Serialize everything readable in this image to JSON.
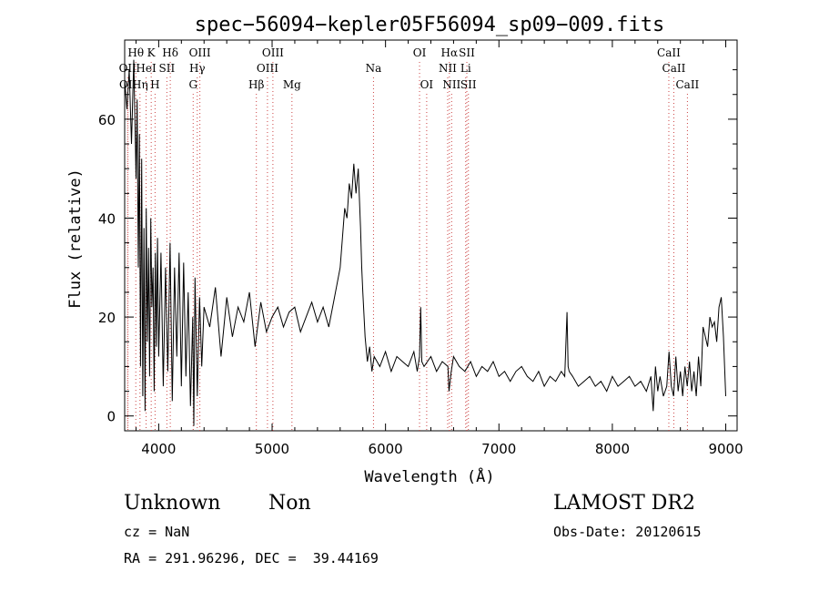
{
  "chart_data": {
    "type": "line",
    "title": "spec−56094−kepler05F56094_sp09−009.fits",
    "xlabel": "Wavelength (Å)",
    "ylabel": "Flux (relative)",
    "xlim": [
      3700,
      9100
    ],
    "ylim": [
      -3,
      76
    ],
    "xticks": [
      4000,
      5000,
      6000,
      7000,
      8000,
      9000
    ],
    "yticks": [
      0,
      20,
      40,
      60
    ],
    "series": [
      {
        "x": [
          3700,
          3720,
          3740,
          3760,
          3780,
          3800,
          3810,
          3820,
          3830,
          3840,
          3850,
          3860,
          3870,
          3880,
          3890,
          3900,
          3910,
          3920,
          3930,
          3940,
          3950,
          3960,
          3970,
          3980,
          3990,
          4000,
          4020,
          4040,
          4060,
          4080,
          4100,
          4120,
          4140,
          4160,
          4180,
          4200,
          4220,
          4240,
          4260,
          4280,
          4300,
          4310,
          4320,
          4340,
          4360,
          4380,
          4400,
          4450,
          4500,
          4550,
          4600,
          4650,
          4700,
          4750,
          4800,
          4850,
          4900,
          4950,
          5000,
          5050,
          5100,
          5150,
          5200,
          5250,
          5300,
          5350,
          5400,
          5450,
          5500,
          5550,
          5600,
          5620,
          5640,
          5660,
          5680,
          5700,
          5720,
          5740,
          5760,
          5780,
          5790,
          5800,
          5820,
          5840,
          5860,
          5880,
          5900,
          5950,
          6000,
          6050,
          6100,
          6150,
          6200,
          6250,
          6280,
          6300,
          6310,
          6320,
          6340,
          6400,
          6450,
          6500,
          6550,
          6560,
          6580,
          6600,
          6650,
          6700,
          6750,
          6800,
          6850,
          6900,
          6950,
          7000,
          7050,
          7100,
          7150,
          7200,
          7250,
          7300,
          7350,
          7400,
          7450,
          7500,
          7550,
          7580,
          7600,
          7610,
          7620,
          7650,
          7700,
          7750,
          7800,
          7850,
          7900,
          7950,
          8000,
          8050,
          8100,
          8150,
          8200,
          8250,
          8300,
          8340,
          8360,
          8380,
          8400,
          8420,
          8450,
          8480,
          8500,
          8520,
          8540,
          8560,
          8580,
          8600,
          8620,
          8640,
          8660,
          8680,
          8700,
          8720,
          8740,
          8760,
          8780,
          8800,
          8820,
          8840,
          8860,
          8880,
          8900,
          8920,
          8940,
          8960,
          8980,
          9000
        ],
        "y": [
          68,
          62,
          70,
          55,
          72,
          48,
          64,
          30,
          57,
          10,
          52,
          4,
          38,
          1,
          42,
          15,
          34,
          8,
          40,
          22,
          30,
          5,
          33,
          14,
          36,
          12,
          33,
          6,
          30,
          9,
          35,
          3,
          30,
          12,
          33,
          6,
          31,
          8,
          25,
          2,
          20,
          -2,
          28,
          4,
          24,
          10,
          22,
          18,
          26,
          12,
          24,
          16,
          22,
          19,
          25,
          14,
          23,
          17,
          20,
          22,
          18,
          21,
          22,
          17,
          20,
          23,
          19,
          22,
          18,
          24,
          30,
          36,
          42,
          40,
          47,
          44,
          51,
          45,
          50,
          38,
          30,
          25,
          16,
          11,
          14,
          9,
          12,
          10,
          13,
          9,
          12,
          11,
          10,
          13,
          9,
          12,
          22,
          11,
          10,
          12,
          9,
          11,
          10,
          5,
          9,
          12,
          10,
          9,
          11,
          8,
          10,
          9,
          11,
          8,
          9,
          7,
          9,
          10,
          8,
          7,
          9,
          6,
          8,
          7,
          9,
          8,
          21,
          10,
          9,
          8,
          6,
          7,
          8,
          6,
          7,
          5,
          8,
          6,
          7,
          8,
          6,
          7,
          5,
          8,
          1,
          10,
          5,
          8,
          4,
          6,
          13,
          6,
          4,
          12,
          5,
          9,
          4,
          10,
          6,
          11,
          5,
          9,
          4,
          12,
          6,
          18,
          16,
          14,
          20,
          18,
          19,
          15,
          22,
          24,
          16,
          4
        ]
      }
    ],
    "lines": [
      {
        "wl": 3726,
        "label": "OII",
        "row": 2
      },
      {
        "wl": 3729,
        "label": "OII",
        "row": 3
      },
      {
        "wl": 3798,
        "label": "Hθ",
        "row": 1
      },
      {
        "wl": 3835,
        "label": "Hη",
        "row": 3
      },
      {
        "wl": 3889,
        "label": "HeI",
        "row": 2
      },
      {
        "wl": 3934,
        "label": "K",
        "row": 1
      },
      {
        "wl": 3968,
        "label": "H",
        "row": 3
      },
      {
        "wl": 4072,
        "label": "SII",
        "row": 2
      },
      {
        "wl": 4102,
        "label": "Hδ",
        "row": 1
      },
      {
        "wl": 4304,
        "label": "G",
        "row": 3
      },
      {
        "wl": 4340,
        "label": "Hγ",
        "row": 2
      },
      {
        "wl": 4363,
        "label": "OIII",
        "row": 1
      },
      {
        "wl": 4861,
        "label": "Hβ",
        "row": 3
      },
      {
        "wl": 4959,
        "label": "OIII",
        "row": 2
      },
      {
        "wl": 5007,
        "label": "OIII",
        "row": 1
      },
      {
        "wl": 5175,
        "label": "Mg",
        "row": 3
      },
      {
        "wl": 5894,
        "label": "Na",
        "row": 2
      },
      {
        "wl": 6300,
        "label": "OI",
        "row": 1
      },
      {
        "wl": 6363,
        "label": "OI",
        "row": 3
      },
      {
        "wl": 6548,
        "label": "NII",
        "row": 2
      },
      {
        "wl": 6563,
        "label": "Hα",
        "row": 1
      },
      {
        "wl": 6583,
        "label": "NII",
        "row": 3
      },
      {
        "wl": 6707,
        "label": "Li",
        "row": 2
      },
      {
        "wl": 6717,
        "label": "SII",
        "row": 1
      },
      {
        "wl": 6731,
        "label": "SII",
        "row": 3
      },
      {
        "wl": 8498,
        "label": "CaII",
        "row": 1
      },
      {
        "wl": 8542,
        "label": "CaII",
        "row": 2
      },
      {
        "wl": 8662,
        "label": "CaII",
        "row": 3
      }
    ]
  },
  "info": {
    "class": "Unknown",
    "subclass": "Non",
    "release": "LAMOST DR2",
    "cz": "cz = NaN",
    "obs_date": "Obs-Date: 20120615",
    "coords": "RA = 291.96296, DEC =  39.44169"
  }
}
